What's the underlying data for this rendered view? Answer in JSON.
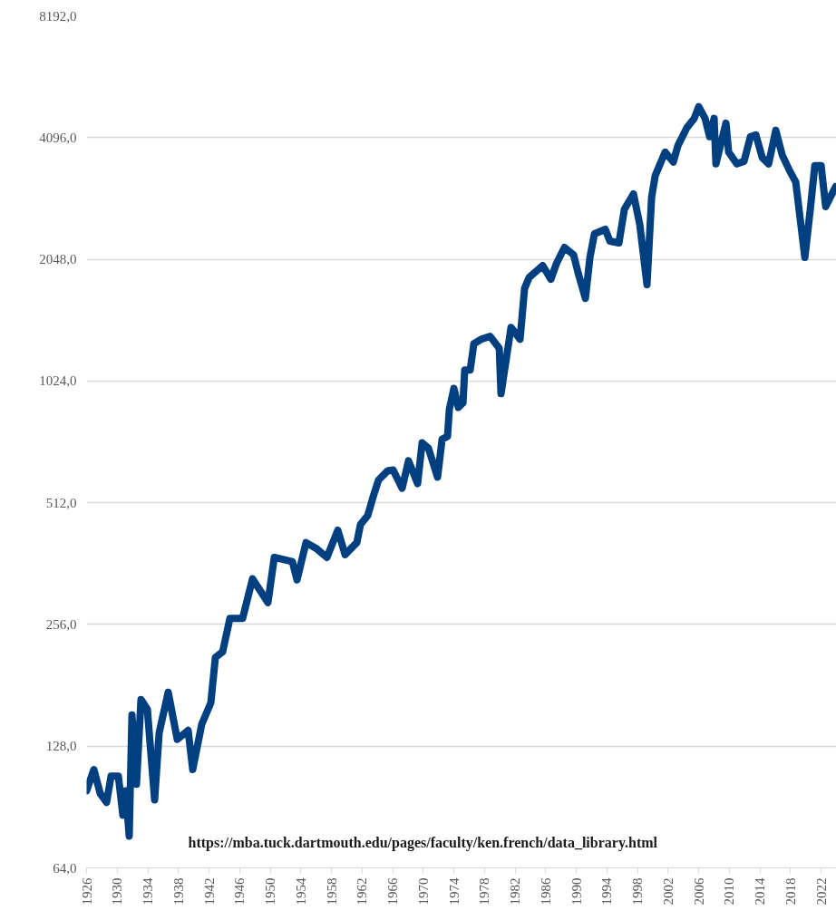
{
  "chart_data": {
    "type": "line",
    "log": "y",
    "grid": "y",
    "marker": "none",
    "line_style": "solid",
    "annotations": [
      "https://mba.tuck.dartmouth.edu/pages/faculty/ken.french/data_library.html"
    ],
    "xlim": [
      1926,
      2024
    ],
    "xticks": [
      1926,
      1930,
      1934,
      1938,
      1942,
      1946,
      1950,
      1954,
      1958,
      1962,
      1966,
      1970,
      1974,
      1978,
      1982,
      1986,
      1990,
      1994,
      1998,
      2002,
      2006,
      2010,
      2014,
      2018,
      2022
    ],
    "ylim": [
      64,
      8192
    ],
    "yticks": [
      {
        "value": 64,
        "label": "64,0"
      },
      {
        "value": 128,
        "label": "128,0"
      },
      {
        "value": 256,
        "label": "256,0"
      },
      {
        "value": 512,
        "label": "512,0"
      },
      {
        "value": 1024,
        "label": "1024,0"
      },
      {
        "value": 2048,
        "label": "2048,0"
      },
      {
        "value": 4096,
        "label": "4096,0"
      },
      {
        "value": 8192,
        "label": "8192,0"
      }
    ],
    "series": [
      {
        "color": "#003f80",
        "x": [
          1926.0,
          1926.95,
          1927.78,
          1928.61,
          1929.2,
          1930.15,
          1930.74,
          1931.1,
          1931.57,
          1931.93,
          1932.52,
          1933.11,
          1933.94,
          1934.89,
          1935.48,
          1936.67,
          1937.85,
          1939.27,
          1939.87,
          1941.05,
          1942.24,
          1942.83,
          1943.78,
          1944.73,
          1946.39,
          1947.69,
          1949.7,
          1950.53,
          1952.9,
          1953.5,
          1954.68,
          1955.99,
          1957.41,
          1958.83,
          1959.78,
          1961.32,
          1961.79,
          1962.74,
          1963.57,
          1964.16,
          1965.35,
          1966.06,
          1967.24,
          1968.07,
          1969.26,
          1969.85,
          1970.68,
          1971.87,
          1972.46,
          1973.17,
          1973.41,
          1974.0,
          1974.59,
          1975.19,
          1975.42,
          1976.13,
          1976.61,
          1977.56,
          1978.74,
          1979.93,
          1980.16,
          1981.11,
          1981.47,
          1982.65,
          1983.24,
          1983.84,
          1985.61,
          1986.68,
          1987.39,
          1988.46,
          1989.64,
          1990.24,
          1991.19,
          1991.78,
          1992.37,
          1993.79,
          1994.39,
          1995.57,
          1996.28,
          1997.47,
          1998.3,
          1999.24,
          1999.84,
          2000.31,
          2001.61,
          2002.68,
          2003.27,
          2004.46,
          2005.41,
          2006.0,
          2006.83,
          2007.42,
          2008.01,
          2008.25,
          2009.56,
          2009.91,
          2010.98,
          2011.93,
          2012.76,
          2013.47,
          2014.3,
          2015.13,
          2016.07,
          2016.9,
          2017.85,
          2018.68,
          2019.87,
          2020.58,
          2021.17,
          2022.0,
          2022.59,
          2023.9
        ],
        "values": [
          99.3,
          112,
          97.8,
          92.9,
          108,
          108,
          86.4,
          99.3,
          76.7,
          153,
          103,
          167,
          158,
          94.3,
          138,
          174,
          133,
          140,
          112,
          145,
          164,
          212,
          219,
          265,
          265,
          332,
          290,
          375,
          366,
          330,
          408,
          395,
          375,
          438,
          381,
          408,
          452,
          476,
          539,
          583,
          614,
          617,
          556,
          650,
          571,
          720,
          698,
          592,
          735,
          747,
          872,
          982,
          881,
          904,
          1090,
          1090,
          1266,
          1299,
          1320,
          1234,
          953,
          1253,
          1389,
          1299,
          1736,
          1847,
          1976,
          1828,
          1996,
          2191,
          2102,
          1895,
          1640,
          2070,
          2367,
          2429,
          2271,
          2248,
          2721,
          2972,
          2493,
          1772,
          2911,
          3296,
          3771,
          3563,
          3909,
          4336,
          4568,
          4884,
          4568,
          4117,
          4568,
          3526,
          4449,
          3771,
          3526,
          3580,
          4117,
          4160,
          3656,
          3526,
          4270,
          3712,
          3400,
          3179,
          2070,
          2721,
          3489,
          3489,
          2765,
          3098
        ]
      }
    ]
  }
}
